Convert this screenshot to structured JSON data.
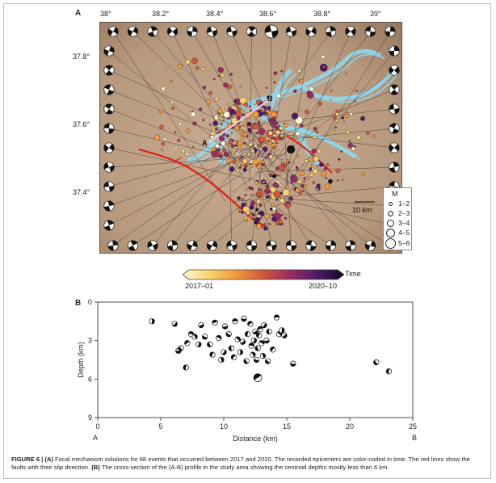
{
  "panel_a": {
    "letter": "A",
    "lon_ticks": [
      "38°",
      "38.2°",
      "38.4°",
      "38.6°",
      "38.8°",
      "39°"
    ],
    "lat_ticks": [
      "37.8°",
      "37.6°",
      "37.4°"
    ],
    "point_a_label": "A",
    "point_b_label": "B",
    "scale_label": "10 km",
    "legend": {
      "title": "M",
      "items": [
        "1–2",
        "2–3",
        "3–4",
        "4–5",
        "5–6"
      ]
    },
    "colorbar": {
      "title": "Time",
      "start_label": "2017–01",
      "end_label": "2020–10",
      "colors": [
        "#fffcd4",
        "#f7d36b",
        "#f09a3a",
        "#d2563c",
        "#9a2c5e",
        "#4e1a6b",
        "#120a24"
      ]
    },
    "colors": {
      "fault": "#e0251a",
      "water": "#8ed8ef",
      "terrain": "#b8997d",
      "profile_line": "#f2c8d2"
    }
  },
  "panel_b": {
    "letter": "B",
    "ylabel": "Depth (km)",
    "xlabel": "Distance (km)",
    "left_end": "A",
    "right_end": "B"
  },
  "chart_data": {
    "type": "scatter",
    "title": "",
    "xlabel": "Distance (km)",
    "ylabel": "Depth (km)",
    "xlim": [
      0,
      25
    ],
    "ylim": [
      9,
      0
    ],
    "x_ticks": [
      "0",
      "5",
      "10",
      "15",
      "20",
      "25"
    ],
    "y_ticks": [
      "0",
      "3",
      "6",
      "9"
    ],
    "grid": false,
    "series": [
      {
        "marker": "focal-mechanism",
        "x": [
          4.3,
          6.1,
          6.4,
          6.6,
          7.0,
          7.1,
          7.4,
          7.7,
          8.0,
          8.2,
          8.5,
          8.9,
          9.1,
          9.3,
          9.6,
          9.8,
          10.0,
          10.1,
          10.4,
          10.6,
          10.8,
          10.9,
          11.1,
          11.3,
          11.5,
          11.6,
          11.8,
          11.9,
          12.1,
          12.2,
          12.3,
          12.4,
          12.5,
          12.6,
          12.7,
          12.8,
          12.9,
          13.0,
          13.1,
          13.2,
          13.4,
          13.5,
          13.6,
          13.9,
          14.2,
          14.4,
          14.6,
          14.8,
          15.5,
          22.1,
          23.1,
          12.7
        ],
        "y": [
          1.5,
          1.7,
          3.8,
          3.6,
          5.1,
          3.2,
          2.5,
          2.7,
          3.3,
          1.8,
          2.7,
          3.3,
          4.1,
          1.6,
          2.8,
          4.5,
          3.9,
          1.9,
          2.5,
          3.6,
          4.3,
          1.5,
          2.9,
          3.9,
          3.1,
          1.3,
          4.6,
          2.5,
          1.7,
          3.4,
          4.1,
          3.0,
          2.3,
          4.5,
          3.6,
          2.6,
          2.1,
          3.2,
          4.2,
          1.8,
          3.0,
          4.6,
          2.3,
          3.7,
          1.2,
          2.5,
          2.2,
          2.6,
          4.8,
          4.7,
          5.4,
          5.9
        ]
      }
    ]
  },
  "caption": {
    "prefix": "FIGURE 6 | ",
    "a_tag": "(A)",
    "a_text": " Focal mechanism solutions for 68 events that occurred between 2017 and 2020. The recorded epicenters are color-coded in time. The red lines show the faults with their slip direction. ",
    "b_tag": "(B)",
    "b_text": " The cross-section of the (A-B) profile in the study area showing the centroid depths mostly less than 6 km."
  }
}
